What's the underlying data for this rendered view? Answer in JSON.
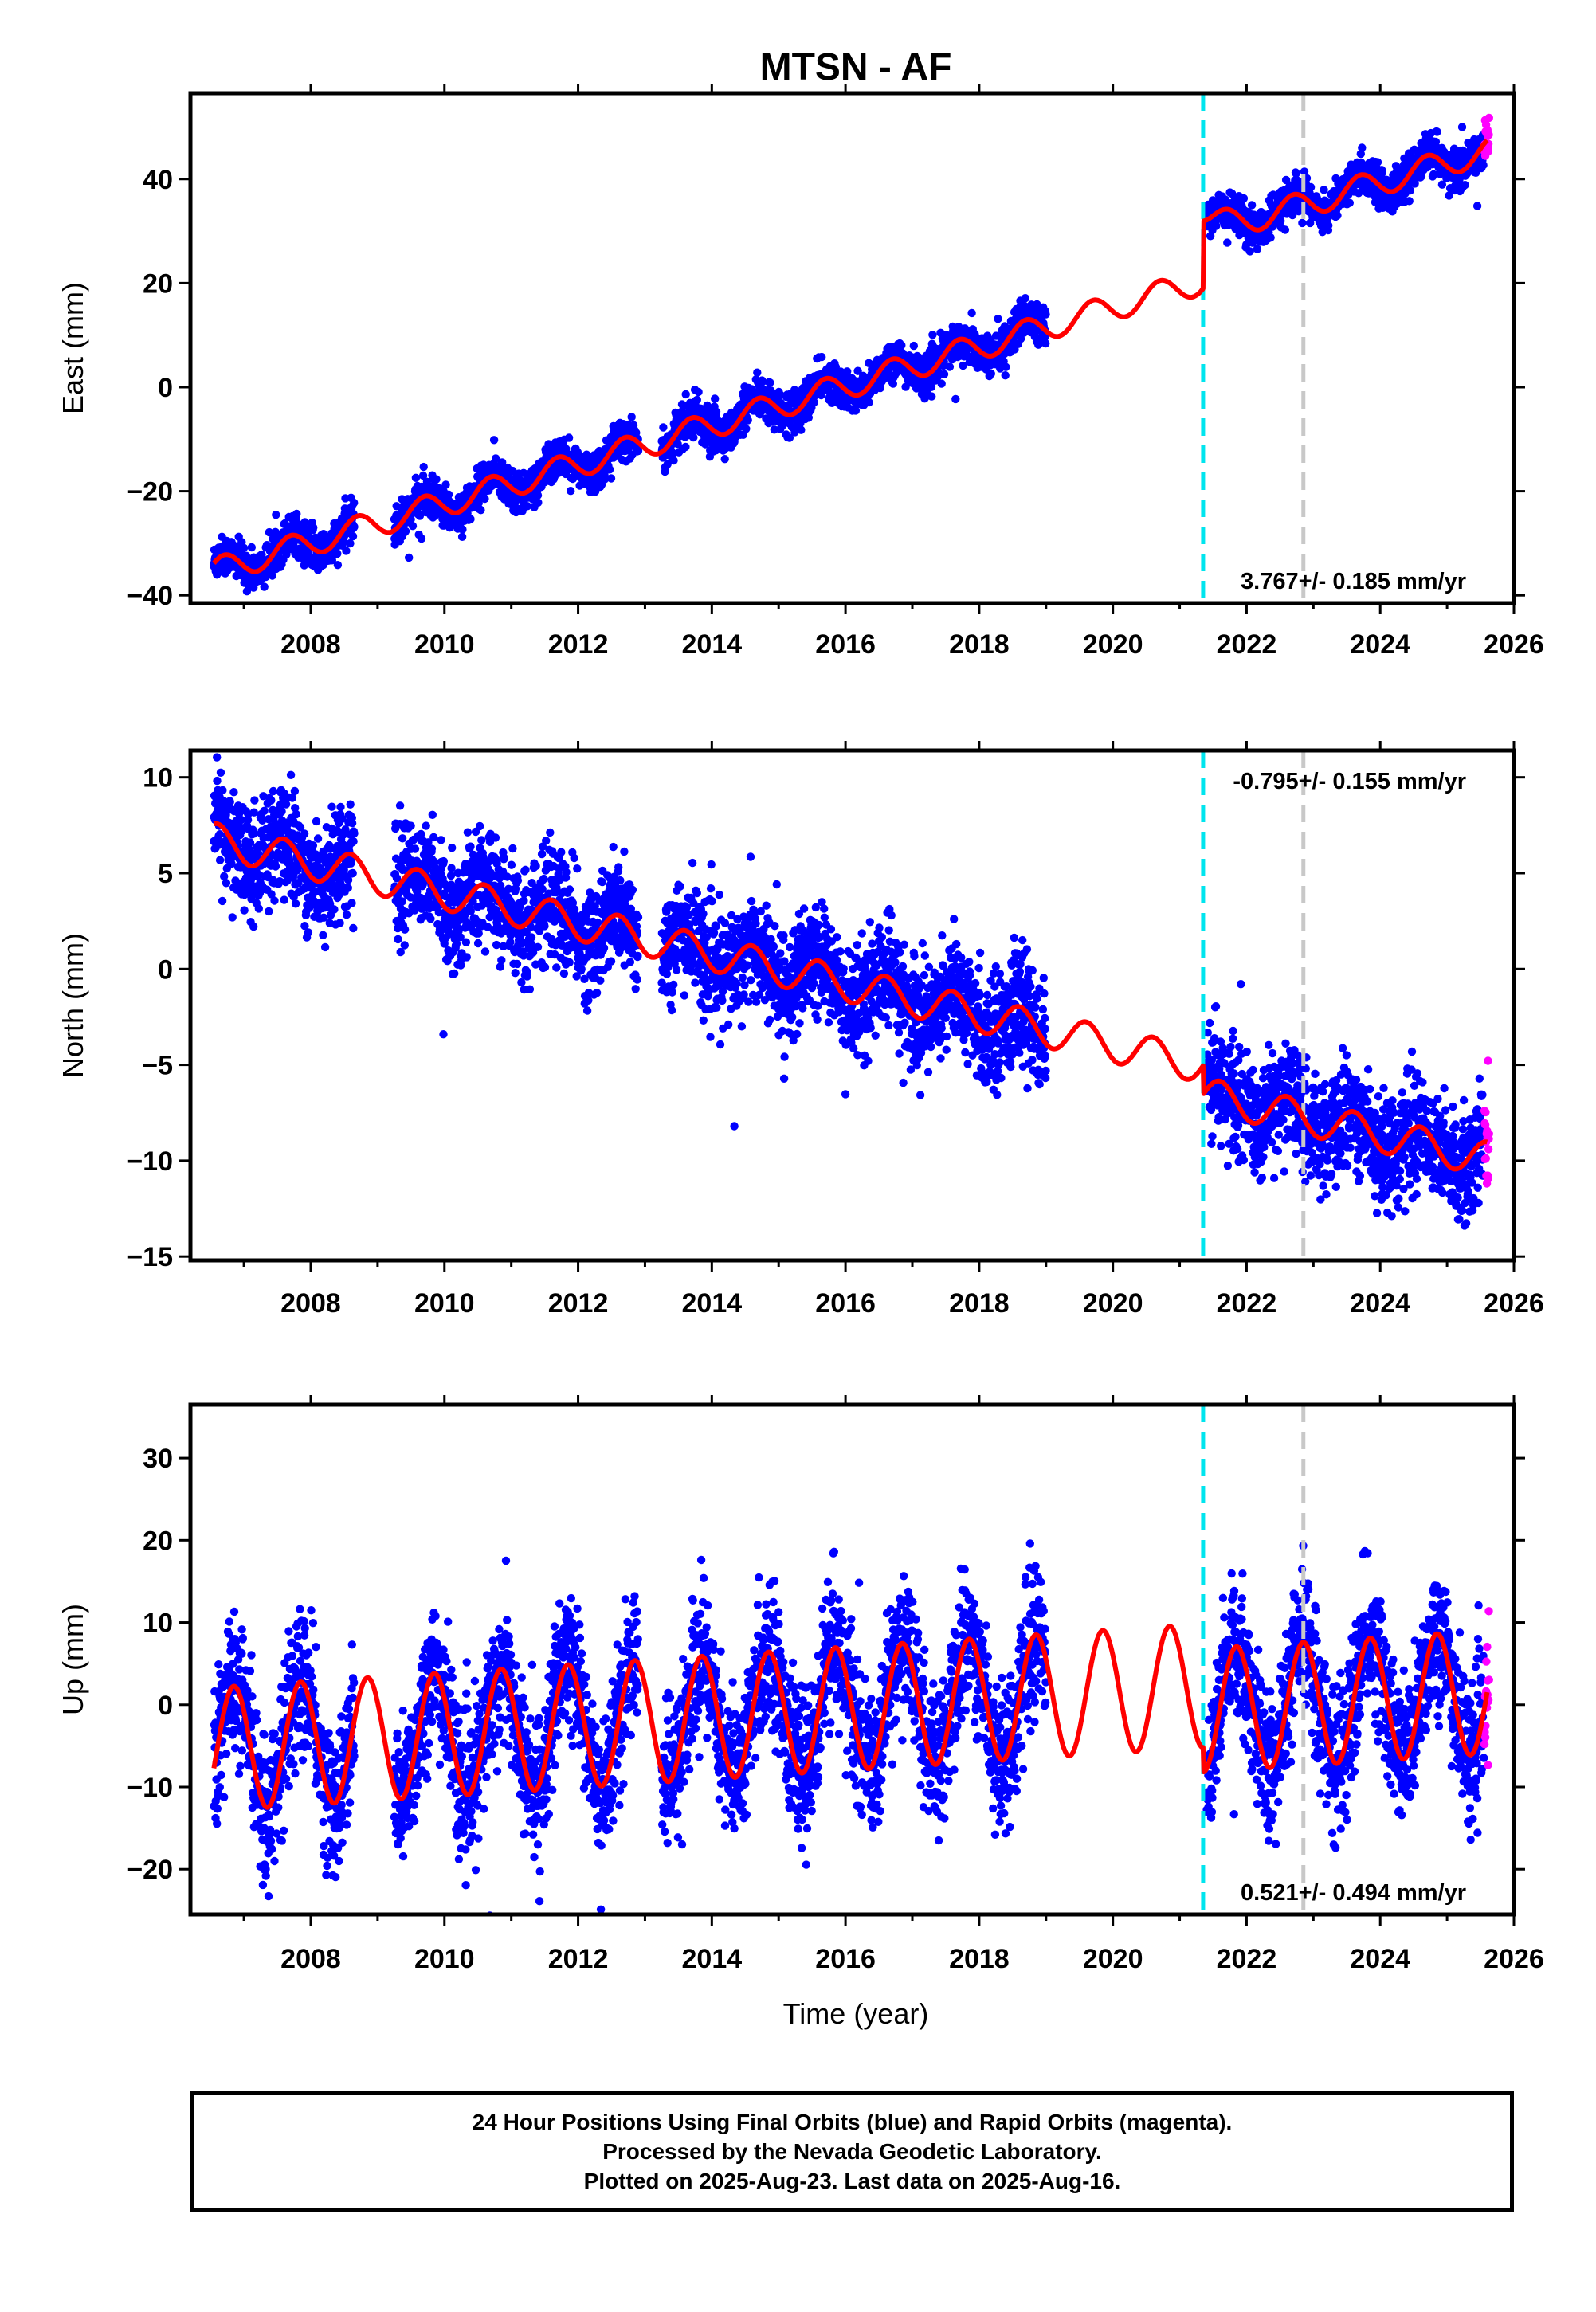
{
  "title": "MTSN - AF",
  "colors": {
    "final_orbits": "#0000ff",
    "rapid_orbits": "#ff00ff",
    "model_fit": "#ff0000",
    "event_line_1": "#00e5ee",
    "event_line_2": "#c8c8c8"
  },
  "xlabel": "Time (year)",
  "footer": {
    "line1": "24 Hour Positions Using Final Orbits (blue) and Rapid Orbits (magenta).",
    "line2": "Processed by the Nevada Geodetic Laboratory.",
    "line3": "Plotted on 2025-Aug-23. Last data on 2025-Aug-16."
  },
  "chart_data": [
    {
      "type": "scatter",
      "component": "east",
      "ylabel": "East (mm)",
      "xlim": [
        2006.2,
        2026.0
      ],
      "ylim": [
        -41.5,
        56.5
      ],
      "xticks": [
        2008,
        2010,
        2012,
        2014,
        2016,
        2018,
        2020,
        2022,
        2024,
        2026
      ],
      "xtick_labels": [
        "2008",
        "2010",
        "2012",
        "2014",
        "2016",
        "2018",
        "2020",
        "2022",
        "2024",
        "2026"
      ],
      "yticks": [
        -40,
        -20,
        0,
        20,
        40
      ],
      "ytick_labels": [
        "−40",
        "−20",
        "0",
        "20",
        "40"
      ],
      "rate_label": "3.767+/- 0.185 mm/yr",
      "rate_position": "bottom-right",
      "event_lines": [
        2021.35,
        2022.85
      ],
      "data_gaps": [
        [
          2008.65,
          2009.25
        ],
        [
          2012.9,
          2013.25
        ],
        [
          2019.0,
          2021.4
        ]
      ],
      "model": {
        "rate": 3.767,
        "intercept_at_2015": -3.5,
        "annual_amplitude": 2.5,
        "annual_phase_year": 0.45,
        "offsets": [
          {
            "year": 2021.35,
            "size": 9.0
          },
          {
            "year": 2022.85,
            "size": 0.0
          }
        ],
        "postseismic_decay": {
          "year": 2021.35,
          "size": 4.0,
          "tau_years": 0.25
        }
      },
      "scatter_sigma": 1.8
    },
    {
      "type": "scatter",
      "component": "north",
      "ylabel": "North (mm)",
      "xlim": [
        2006.2,
        2026.0
      ],
      "ylim": [
        -15.2,
        11.4
      ],
      "xticks": [
        2008,
        2010,
        2012,
        2014,
        2016,
        2018,
        2020,
        2022,
        2024,
        2026
      ],
      "xtick_labels": [
        "2008",
        "2010",
        "2012",
        "2014",
        "2016",
        "2018",
        "2020",
        "2022",
        "2024",
        "2026"
      ],
      "yticks": [
        -15,
        -10,
        -5,
        0,
        5,
        10
      ],
      "ytick_labels": [
        "−15",
        "−10",
        "−5",
        "0",
        "5",
        "10"
      ],
      "rate_label": "-0.795+/- 0.155 mm/yr",
      "rate_position": "top-right",
      "event_lines": [
        2021.35,
        2022.85
      ],
      "data_gaps": [
        [
          2008.65,
          2009.25
        ],
        [
          2012.9,
          2013.25
        ],
        [
          2019.0,
          2021.4
        ]
      ],
      "model": {
        "rate": -0.795,
        "intercept_at_2015": 0.0,
        "annual_amplitude": 0.9,
        "annual_phase_year": 0.35,
        "offsets": [
          {
            "year": 2021.35,
            "size": -1.5
          },
          {
            "year": 2022.85,
            "size": 0.0
          }
        ],
        "postseismic_decay": {
          "year": 2021.35,
          "size": 0.0,
          "tau_years": 0.25
        }
      },
      "scatter_sigma": 1.4
    },
    {
      "type": "scatter",
      "component": "up",
      "ylabel": "Up (mm)",
      "xlim": [
        2006.2,
        2026.0
      ],
      "ylim": [
        -25.5,
        36.5
      ],
      "xticks": [
        2008,
        2010,
        2012,
        2014,
        2016,
        2018,
        2020,
        2022,
        2024,
        2026
      ],
      "xtick_labels": [
        "2008",
        "2010",
        "2012",
        "2014",
        "2016",
        "2018",
        "2020",
        "2022",
        "2024",
        "2026"
      ],
      "yticks": [
        -20,
        -10,
        0,
        10,
        20,
        30
      ],
      "ytick_labels": [
        "−20",
        "−10",
        "0",
        "10",
        "20",
        "30"
      ],
      "rate_label": "0.521+/- 0.494 mm/yr",
      "rate_position": "bottom-right",
      "event_lines": [
        2021.35,
        2022.85
      ],
      "data_gaps": [
        [
          2008.65,
          2009.25
        ],
        [
          2012.9,
          2013.25
        ],
        [
          2019.0,
          2021.4
        ]
      ],
      "model": {
        "rate": 0.521,
        "intercept_at_2015": -1.0,
        "annual_amplitude": 7.5,
        "annual_phase_year": 0.6,
        "offsets": [
          {
            "year": 2021.35,
            "size": -3.0
          },
          {
            "year": 2022.85,
            "size": 0.0
          }
        ],
        "postseismic_decay": {
          "year": 2021.35,
          "size": 0.0,
          "tau_years": 0.25
        }
      },
      "scatter_sigma": 4.2
    }
  ]
}
